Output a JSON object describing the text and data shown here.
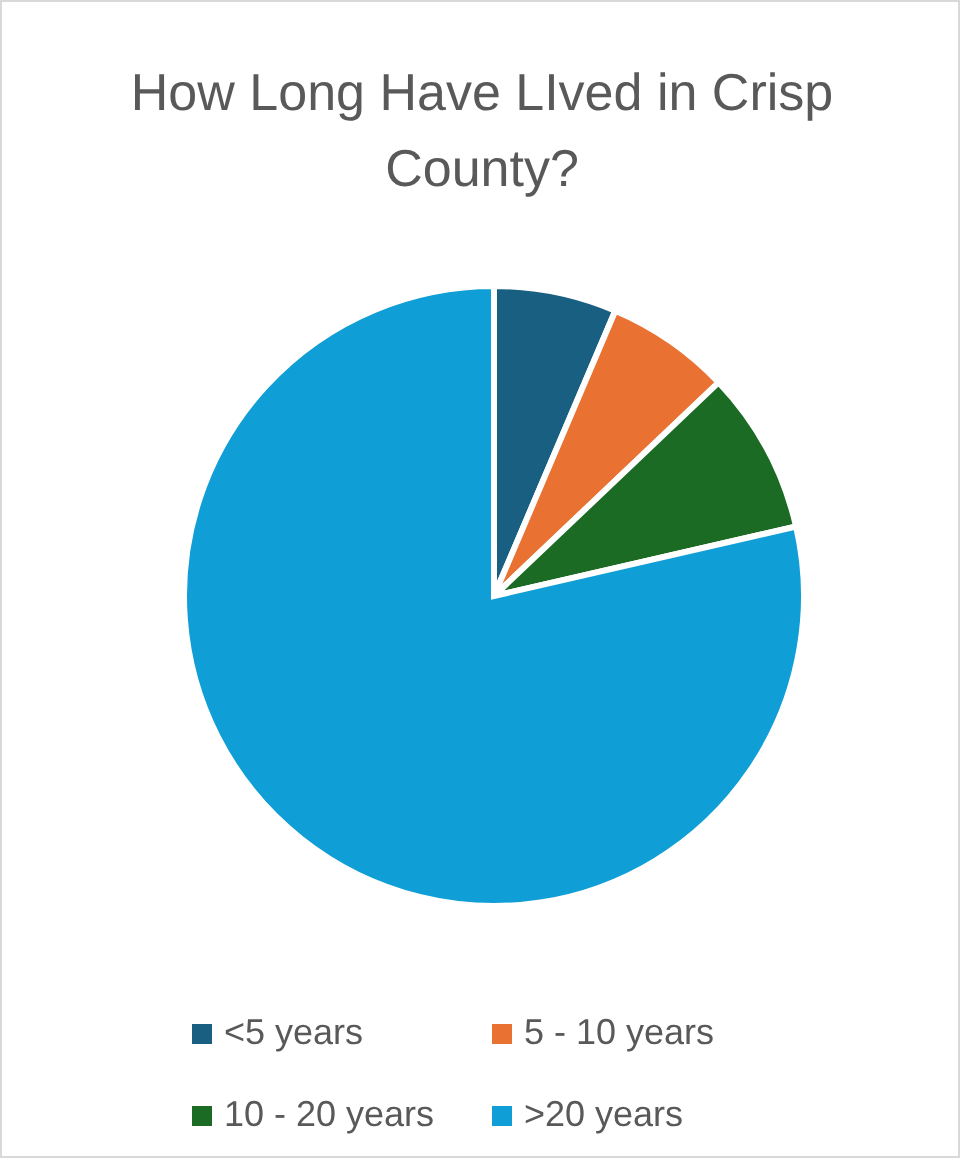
{
  "chart_data": {
    "type": "pie",
    "title": "How Long Have LIved in Crisp County?",
    "categories": [
      "<5 years",
      "5 - 10 years",
      "10 - 20 years",
      ">20 years"
    ],
    "values": [
      6.4,
      6.5,
      8.5,
      78.6
    ],
    "colors": [
      "#185f82",
      "#e97132",
      "#1b6b25",
      "#0f9ed5"
    ],
    "legend": "bottom"
  }
}
